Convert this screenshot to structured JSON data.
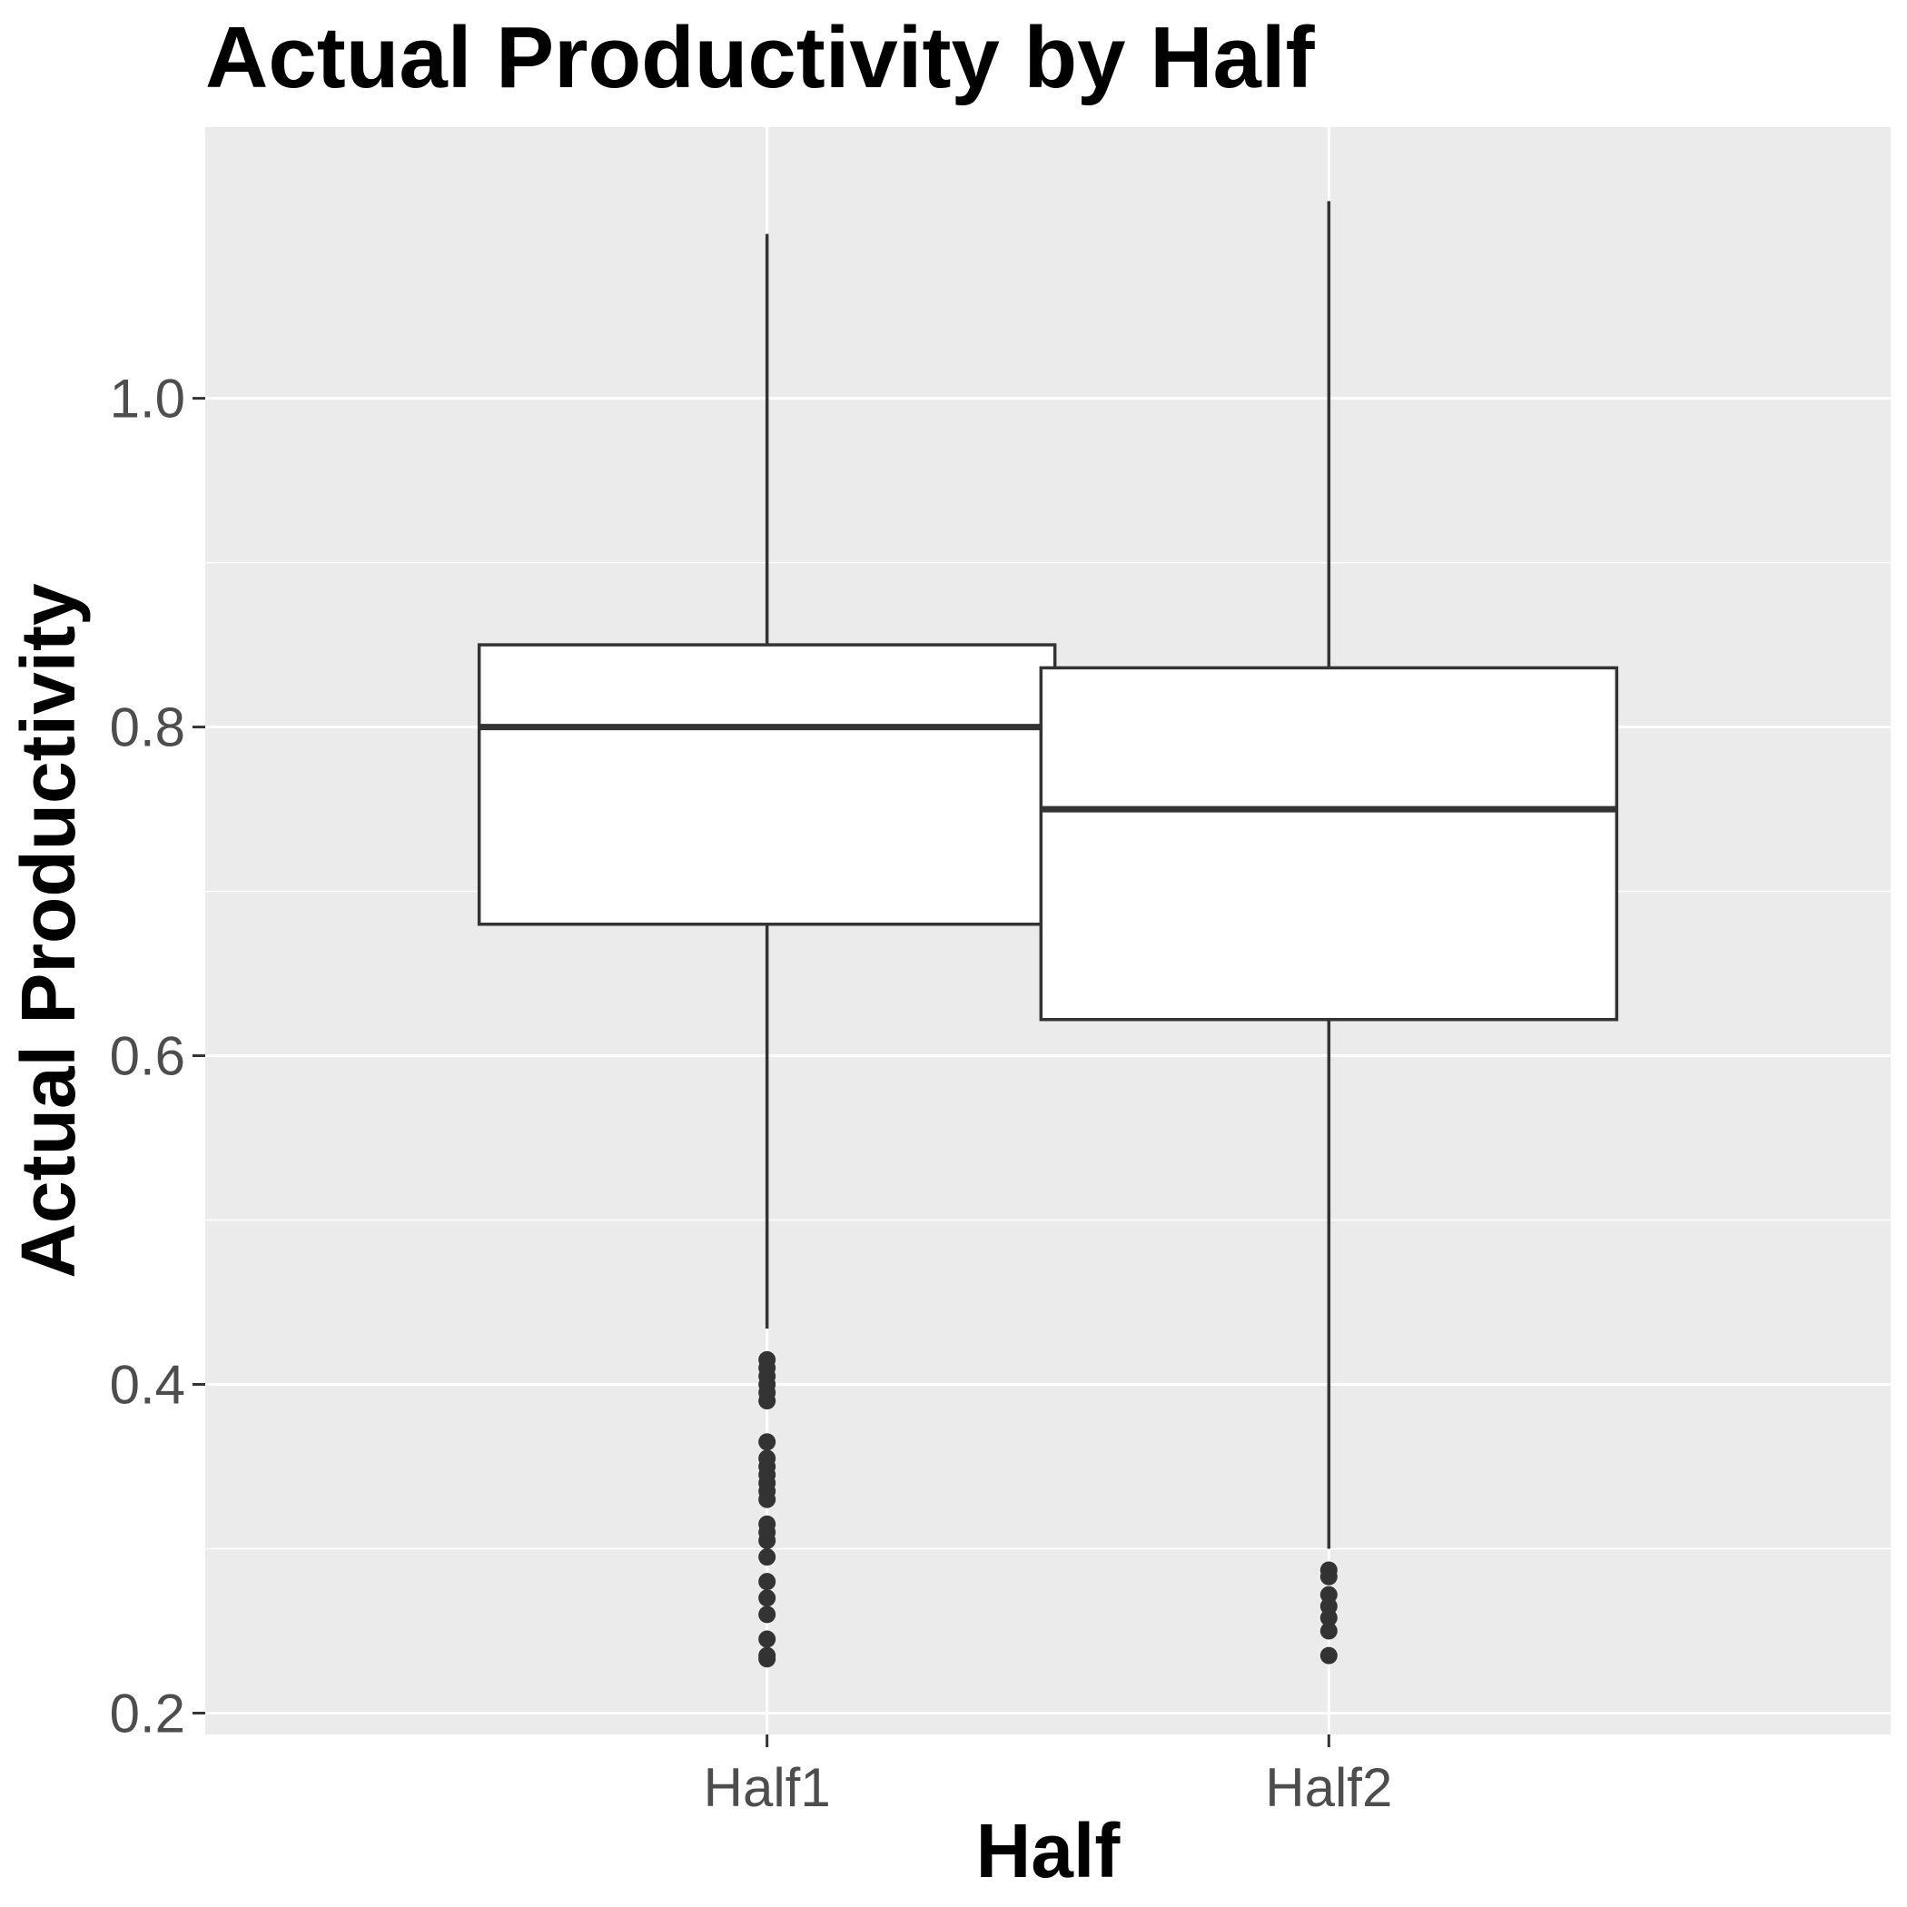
{
  "chart_data": {
    "type": "box",
    "title": "Actual Productivity by Half",
    "xlabel": "Half",
    "ylabel": "Actual Productivity",
    "categories": [
      "Half1",
      "Half2"
    ],
    "ylim": [
      0.187,
      1.165
    ],
    "y_ticks": [
      0.2,
      0.4,
      0.6,
      0.8,
      1.0
    ],
    "y_tick_labels": [
      "0.2",
      "0.4",
      "0.6",
      "0.8",
      "1.0"
    ],
    "grid": true,
    "boxes": [
      {
        "category": "Half1",
        "whisker_low": 0.434,
        "q1": 0.68,
        "median": 0.8,
        "q3": 0.85,
        "whisker_high": 1.1,
        "outliers": [
          0.415,
          0.41,
          0.405,
          0.4,
          0.395,
          0.39,
          0.365,
          0.355,
          0.35,
          0.345,
          0.34,
          0.335,
          0.33,
          0.315,
          0.31,
          0.305,
          0.295,
          0.28,
          0.27,
          0.26,
          0.245,
          0.235,
          0.233
        ]
      },
      {
        "category": "Half2",
        "whisker_low": 0.3,
        "q1": 0.622,
        "median": 0.75,
        "q3": 0.836,
        "whisker_high": 1.12,
        "outliers": [
          0.287,
          0.283,
          0.272,
          0.265,
          0.258,
          0.25,
          0.235
        ]
      }
    ],
    "colors": {
      "panel_background": "#ebebeb",
      "grid": "#ffffff",
      "box_fill": "#ffffff",
      "box_stroke": "#333333",
      "outlier": "#333333",
      "tick_label": "#4d4d4d"
    }
  }
}
